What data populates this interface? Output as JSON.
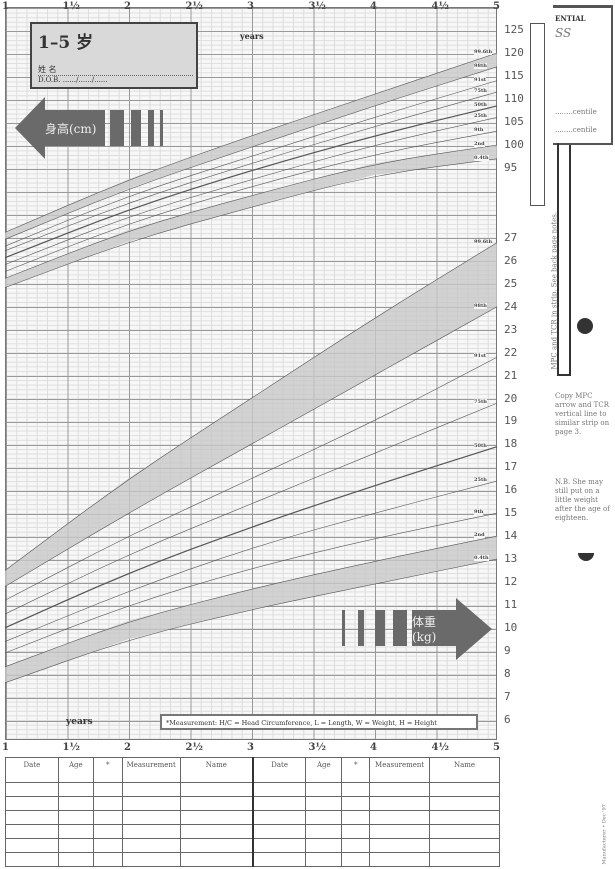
{
  "title_box": {
    "title": "1–5 岁",
    "name_label": "姓 名",
    "dob_label": "D.O.B. ....../....../......"
  },
  "axis": {
    "top_unit": "years",
    "bottom_unit": "years",
    "x_ticks": [
      "1",
      "1½",
      "2",
      "2½",
      "3",
      "3½",
      "4",
      "4½",
      "5"
    ]
  },
  "height_arrow": {
    "label": "身高(cm)",
    "icon": "arrow-left"
  },
  "weight_arrow": {
    "label": "体重(kg)",
    "icon": "arrow-right"
  },
  "legend_note": "*Measurement: H/C = Head Circumference, L = Length, W = Weight, H = Height",
  "side_panel": {
    "header": "ENTIAL",
    "handwritten": "SS",
    "centile_1": "........centile",
    "centile_2": "........centile",
    "strip_note": "MPC and TCR in strip. See back page notes.",
    "copy_note": "Copy MPC arrow and TCR vertical line to similar strip on page 3.",
    "nb_note": "N.B. She may still put on a little weight after the age of eighteen.",
    "footer": "Manufacturer •   Dec '97"
  },
  "log_table": {
    "columns": [
      "Date",
      "Age",
      "*",
      "Measurement",
      "Name"
    ],
    "rows": 6
  },
  "colors": {
    "band": "#c8c8c8",
    "line": "#555555",
    "arrow": "#6a6a6a"
  },
  "chart_data": {
    "type": "line",
    "x": [
      1,
      2,
      3,
      4,
      5
    ],
    "xlabel": "years",
    "xlim": [
      1,
      5
    ],
    "grid": true,
    "height": {
      "ylabel": "身高(cm)",
      "ticks": [
        125,
        120,
        115,
        110,
        105,
        100,
        95
      ],
      "series": [
        {
          "name": "99.6th",
          "values": [
            81,
            92.5,
            102,
            111,
            120
          ]
        },
        {
          "name": "98th",
          "values": [
            79.5,
            90.5,
            99.5,
            108.5,
            117
          ]
        },
        {
          "name": "91st",
          "values": [
            78,
            89,
            97.5,
            106,
            114
          ]
        },
        {
          "name": "75th",
          "values": [
            77,
            87.5,
            96,
            104,
            111.5
          ]
        },
        {
          "name": "50th",
          "values": [
            75.5,
            86,
            94.5,
            102,
            108.5
          ]
        },
        {
          "name": "25th",
          "values": [
            74,
            84.5,
            92.5,
            100,
            106
          ]
        },
        {
          "name": "9th",
          "values": [
            72.5,
            83,
            91,
            98,
            103
          ]
        },
        {
          "name": "2nd",
          "values": [
            71,
            81.5,
            89,
            96,
            100
          ]
        },
        {
          "name": "0.4th",
          "values": [
            69,
            79,
            86.5,
            93.5,
            97
          ]
        }
      ]
    },
    "weight": {
      "ylabel": "体重(kg)",
      "ticks": [
        27,
        26,
        25,
        24,
        23,
        22,
        21,
        20,
        19,
        18,
        17,
        16,
        15,
        14,
        13,
        12,
        11,
        10,
        9,
        8,
        7,
        6
      ],
      "series": [
        {
          "name": "99.6th",
          "values": [
            12.5,
            16.5,
            20,
            23.5,
            26.8
          ]
        },
        {
          "name": "98th",
          "values": [
            11.8,
            15,
            18,
            21,
            24
          ]
        },
        {
          "name": "91st",
          "values": [
            11.2,
            14,
            16.5,
            19,
            21.8
          ]
        },
        {
          "name": "75th",
          "values": [
            10.6,
            13.2,
            15.4,
            17.6,
            19.8
          ]
        },
        {
          "name": "50th",
          "values": [
            10,
            12.4,
            14.4,
            16.2,
            17.9
          ]
        },
        {
          "name": "25th",
          "values": [
            9.4,
            11.6,
            13.5,
            15,
            16.4
          ]
        },
        {
          "name": "9th",
          "values": [
            8.9,
            11,
            12.6,
            13.9,
            15
          ]
        },
        {
          "name": "2nd",
          "values": [
            8.3,
            10.3,
            11.7,
            12.9,
            14
          ]
        },
        {
          "name": "0.4th",
          "values": [
            7.6,
            9.5,
            10.8,
            11.9,
            13
          ]
        }
      ]
    }
  }
}
